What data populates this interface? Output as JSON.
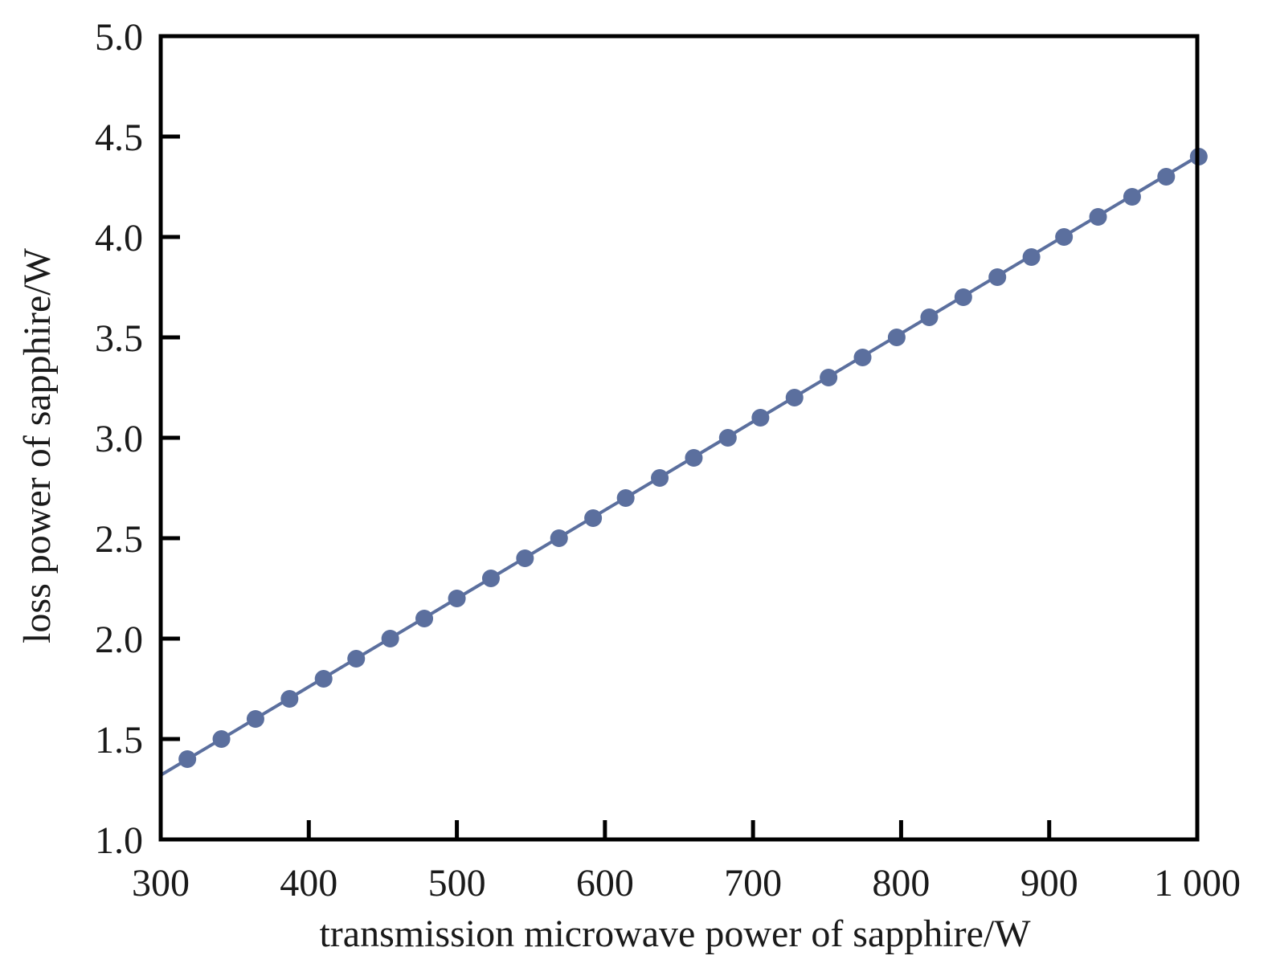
{
  "chart_data": {
    "type": "line",
    "title": "",
    "xlabel": "transmission microwave power of sapphire/W",
    "ylabel": "loss power of sapphire/W",
    "xlim": [
      300,
      1000
    ],
    "ylim": [
      1.0,
      5.0
    ],
    "x_ticks": [
      300,
      400,
      500,
      600,
      700,
      800,
      900,
      1000
    ],
    "x_tick_labels": [
      "300",
      "400",
      "500",
      "600",
      "700",
      "800",
      "900",
      "1 000"
    ],
    "y_ticks": [
      1.0,
      1.5,
      2.0,
      2.5,
      3.0,
      3.5,
      4.0,
      4.5,
      5.0
    ],
    "y_tick_labels": [
      "1.0",
      "1.5",
      "2.0",
      "2.5",
      "3.0",
      "3.5",
      "4.0",
      "4.5",
      "5.0"
    ],
    "grid": false,
    "line_color": "#5b6f9e",
    "series": [
      {
        "fit_line": {
          "x": [
            300,
            1000
          ],
          "y": [
            1.32,
            4.4
          ]
        },
        "x": [
          318,
          341,
          364,
          387,
          410,
          432,
          455,
          478,
          500,
          523,
          546,
          569,
          592,
          614,
          637,
          660,
          683,
          705,
          728,
          751,
          774,
          797,
          819,
          842,
          865,
          888,
          910,
          933,
          956,
          979,
          1001
        ],
        "y": [
          1.4,
          1.5,
          1.6,
          1.7,
          1.8,
          1.9,
          2.0,
          2.1,
          2.2,
          2.3,
          2.4,
          2.5,
          2.6,
          2.7,
          2.8,
          2.9,
          3.0,
          3.1,
          3.2,
          3.3,
          3.4,
          3.5,
          3.6,
          3.7,
          3.8,
          3.9,
          4.0,
          4.1,
          4.2,
          4.3,
          4.4
        ]
      }
    ]
  }
}
